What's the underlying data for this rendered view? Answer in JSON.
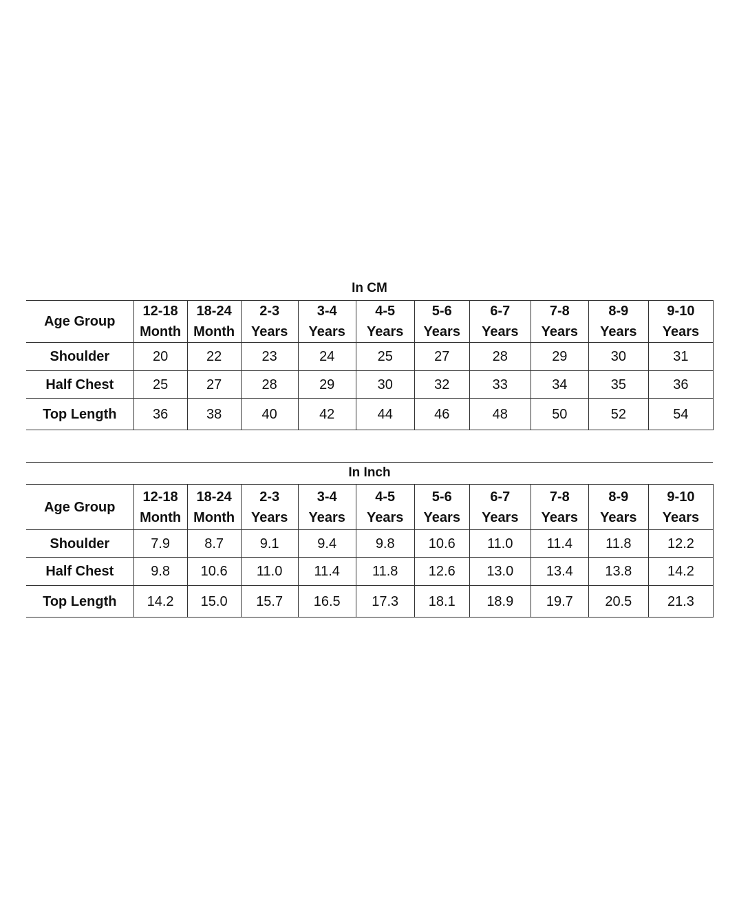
{
  "columns": [
    "12-18 Month",
    "18-24 Month",
    "2-3 Years",
    "3-4 Years",
    "4-5 Years",
    "5-6 Years",
    "6-7 Years",
    "7-8 Years",
    "8-9 Years",
    "9-10 Years"
  ],
  "column_lines": [
    [
      "12-18",
      "Month"
    ],
    [
      "18-24",
      "Month"
    ],
    [
      "2-3",
      "Years"
    ],
    [
      "3-4",
      "Years"
    ],
    [
      "4-5",
      "Years"
    ],
    [
      "5-6",
      "Years"
    ],
    [
      "6-7",
      "Years"
    ],
    [
      "7-8",
      "Years"
    ],
    [
      "8-9",
      "Years"
    ],
    [
      "9-10",
      "Years"
    ]
  ],
  "header_label": "Age Group",
  "tables": [
    {
      "title": "In CM",
      "rows": [
        {
          "label": "Shoulder",
          "values": [
            "20",
            "22",
            "23",
            "24",
            "25",
            "27",
            "28",
            "29",
            "30",
            "31"
          ]
        },
        {
          "label": "Half Chest",
          "values": [
            "25",
            "27",
            "28",
            "29",
            "30",
            "32",
            "33",
            "34",
            "35",
            "36"
          ]
        },
        {
          "label": "Top Length",
          "values": [
            "36",
            "38",
            "40",
            "42",
            "44",
            "46",
            "48",
            "50",
            "52",
            "54"
          ]
        }
      ]
    },
    {
      "title": "In Inch",
      "rows": [
        {
          "label": "Shoulder",
          "values": [
            "7.9",
            "8.7",
            "9.1",
            "9.4",
            "9.8",
            "10.6",
            "11.0",
            "11.4",
            "11.8",
            "12.2"
          ]
        },
        {
          "label": "Half Chest",
          "values": [
            "9.8",
            "10.6",
            "11.0",
            "11.4",
            "11.8",
            "12.6",
            "13.0",
            "13.4",
            "13.8",
            "14.2"
          ]
        },
        {
          "label": "Top Length",
          "values": [
            "14.2",
            "15.0",
            "15.7",
            "16.5",
            "17.3",
            "18.1",
            "18.9",
            "19.7",
            "20.5",
            "21.3"
          ]
        }
      ]
    }
  ]
}
